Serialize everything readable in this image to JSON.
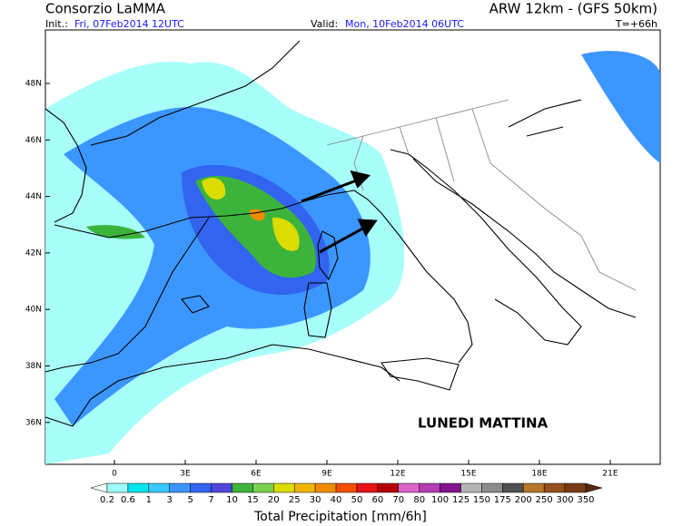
{
  "header": {
    "title_left": "Consorzio LaMMA",
    "title_right": "ARW 12km - (GFS 50km)",
    "init_label": "Init.:",
    "init_value": "Fri, 07Feb2014 12UTC",
    "valid_label": "Valid:",
    "valid_value": "Mon, 10Feb2014 06UTC",
    "lead": "T=+66h"
  },
  "map": {
    "lat_labels": [
      "48N",
      "46N",
      "44N",
      "42N",
      "40N",
      "38N",
      "36N"
    ],
    "lon_labels": [
      "0",
      "3E",
      "6E",
      "9E",
      "12E",
      "15E",
      "18E",
      "21E"
    ],
    "annotation": "LUNEDI MATTINA"
  },
  "colorbar": {
    "title": "Total Precipitation [mm/6h]",
    "levels": [
      0.2,
      0.6,
      1,
      3,
      5,
      7,
      10,
      15,
      20,
      25,
      30,
      40,
      50,
      60,
      70,
      80,
      100,
      125,
      150,
      175,
      200,
      250,
      300,
      350
    ],
    "colors": [
      "#f5fffe",
      "#9ffffa",
      "#00e6f0",
      "#38c8ff",
      "#3c96ff",
      "#3264f0",
      "#5046dc",
      "#3cb43c",
      "#78d250",
      "#dcdc00",
      "#f0b400",
      "#f08c00",
      "#f05000",
      "#e61414",
      "#b40000",
      "#dc64c8",
      "#b43cb4",
      "#82148c",
      "#b4b4b4",
      "#8c8c8c",
      "#505050",
      "#b47828",
      "#96501e",
      "#783c14",
      "#5a280a"
    ]
  }
}
